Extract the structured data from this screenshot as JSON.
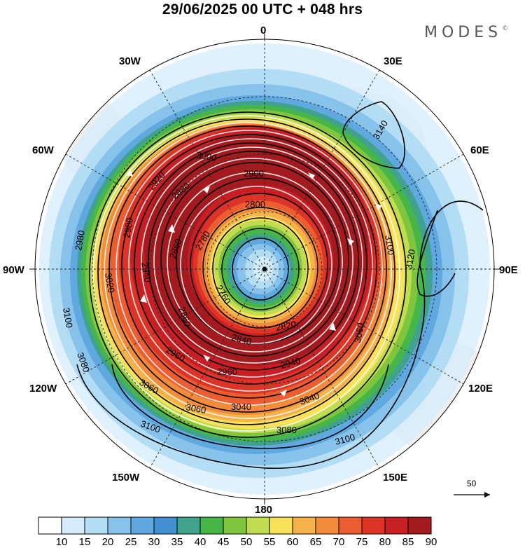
{
  "title": "29/06/2025  00 UTC  + 048 hrs",
  "brand": {
    "name": "MODES",
    "mark": "©"
  },
  "longitude_labels": {
    "lon_0": "0",
    "lon_30e": "30E",
    "lon_60e": "60E",
    "lon_90e": "90E",
    "lon_120e": "120E",
    "lon_150e": "150E",
    "lon_180": "180",
    "lon_150w": "150W",
    "lon_120w": "120W",
    "lon_90w": "90W",
    "lon_60w": "60W",
    "lon_30w": "30W"
  },
  "vector_reference": {
    "label": "50"
  },
  "colorbar": {
    "labels": [
      "10",
      "15",
      "20",
      "25",
      "30",
      "35",
      "40",
      "45",
      "50",
      "55",
      "60",
      "65",
      "70",
      "75",
      "80",
      "85",
      "90"
    ],
    "colors": [
      "#ffffff",
      "#d4ecfb",
      "#b3dcf5",
      "#86c2ea",
      "#5fa8e0",
      "#4290cf",
      "#40a28c",
      "#47b649",
      "#7fc63e",
      "#c2dc52",
      "#f9e15c",
      "#f6b24a",
      "#f28c3a",
      "#ec5d31",
      "#dc3427",
      "#c81f25",
      "#a31a1f"
    ]
  },
  "contours": {
    "labels": [
      "3140",
      "3120",
      "3100",
      "3100",
      "3100",
      "3100",
      "3080",
      "3080",
      "3060",
      "3060",
      "3060",
      "3040",
      "3040",
      "3020",
      "3000",
      "2980",
      "2980",
      "2960",
      "2960",
      "2940",
      "2940",
      "2920",
      "2900",
      "2880",
      "2860",
      "2860",
      "2840",
      "2820",
      "2800",
      "2780",
      "2760"
    ]
  }
}
